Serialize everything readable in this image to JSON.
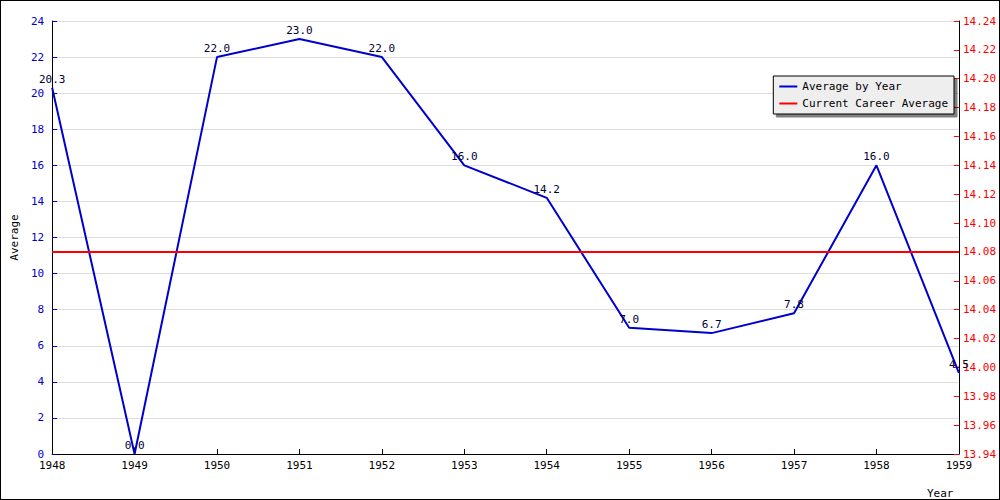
{
  "chart_data": {
    "type": "line",
    "x_label": "Year",
    "y_label": "Average",
    "x": [
      1948,
      1949,
      1950,
      1951,
      1952,
      1953,
      1954,
      1955,
      1956,
      1957,
      1958,
      1959
    ],
    "xlim": [
      1948,
      1959
    ],
    "xticks": [
      1948,
      1949,
      1950,
      1951,
      1952,
      1953,
      1954,
      1955,
      1956,
      1957,
      1958,
      1959
    ],
    "ylim": [
      0,
      24
    ],
    "yticks": [
      0,
      2,
      4,
      6,
      8,
      10,
      12,
      14,
      16,
      18,
      20,
      22,
      24
    ],
    "y2lim": [
      13.94,
      14.24
    ],
    "y2ticks": [
      13.94,
      13.96,
      13.98,
      {
        "value": 14,
        "label": "14.00"
      },
      14.02,
      14.04,
      14.06,
      14.08,
      {
        "value": 14.1,
        "label": "14.10"
      },
      14.12,
      14.14,
      14.16,
      14.18,
      {
        "value": 14.2,
        "label": "14.20"
      },
      14.22,
      14.24
    ],
    "grid": true,
    "legend": "upper right",
    "series": [
      {
        "name": "Average by Year",
        "color": "#0000cc",
        "axis": "y",
        "data_labels": true,
        "values": [
          20.3,
          0,
          22,
          23,
          22,
          16,
          14.2,
          7,
          6.7,
          7.8,
          16,
          4.5
        ],
        "value_labels": [
          "20.3",
          "0.0",
          "22.0",
          "23.0",
          "22.0",
          "16.0",
          "14.2",
          "7.0",
          "6.7",
          "7.8",
          "16.0",
          "4.5"
        ]
      },
      {
        "name": "Current Career Average",
        "color": "#ff0000",
        "axis": "y2",
        "data_labels": false,
        "values": [
          14.08,
          14.08,
          14.08,
          14.08,
          14.08,
          14.08,
          14.08,
          14.08,
          14.08,
          14.08,
          14.08,
          14.08
        ]
      }
    ]
  }
}
